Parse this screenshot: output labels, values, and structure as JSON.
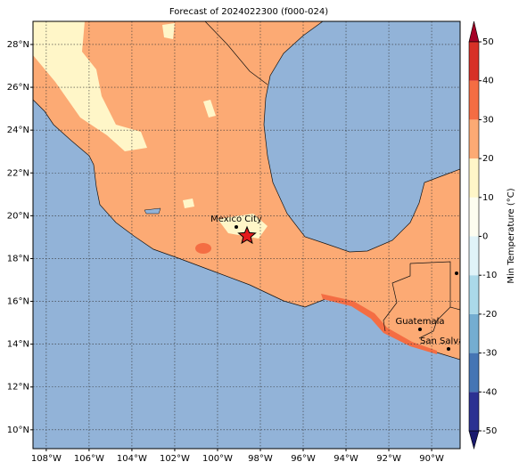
{
  "map": {
    "title": "Forecast of 2024022300 (f000-024)",
    "xlim": [
      -108.62,
      -88.67
    ],
    "ylim": [
      9.12,
      29.08
    ],
    "xticks": [
      {
        "value": -108,
        "label": "108°W"
      },
      {
        "value": -106,
        "label": "106°W"
      },
      {
        "value": -104,
        "label": "104°W"
      },
      {
        "value": -102,
        "label": "102°W"
      },
      {
        "value": -100,
        "label": "100°W"
      },
      {
        "value": -98,
        "label": "98°W"
      },
      {
        "value": -96,
        "label": "96°W"
      },
      {
        "value": -94,
        "label": "94°W"
      },
      {
        "value": -92,
        "label": "92°W"
      },
      {
        "value": -90,
        "label": "90°W"
      }
    ],
    "yticks": [
      {
        "value": 10,
        "label": "10°N"
      },
      {
        "value": 12,
        "label": "12°N"
      },
      {
        "value": 14,
        "label": "14°N"
      },
      {
        "value": 16,
        "label": "16°N"
      },
      {
        "value": 18,
        "label": "18°N"
      },
      {
        "value": 20,
        "label": "20°N"
      },
      {
        "value": 22,
        "label": "22°N"
      },
      {
        "value": 24,
        "label": "24°N"
      },
      {
        "value": 26,
        "label": "26°N"
      },
      {
        "value": 28,
        "label": "28°N"
      }
    ],
    "grid": true,
    "cities": [
      "Mexico City",
      "Guatemala",
      "San Salvador"
    ],
    "colorbar": {
      "label": "Min Temperature (°C)",
      "ticks": [
        -50,
        -40,
        -30,
        -20,
        -10,
        0,
        10,
        20,
        30,
        40,
        50
      ],
      "colors": [
        "#1a1a6e",
        "#2b3192",
        "#4575b4",
        "#74add1",
        "#abd9e9",
        "#e0f3f8",
        "#fdfdf0",
        "#fff6c8",
        "#fcaa74",
        "#f46d43",
        "#d73027",
        "#a50026"
      ]
    }
  }
}
